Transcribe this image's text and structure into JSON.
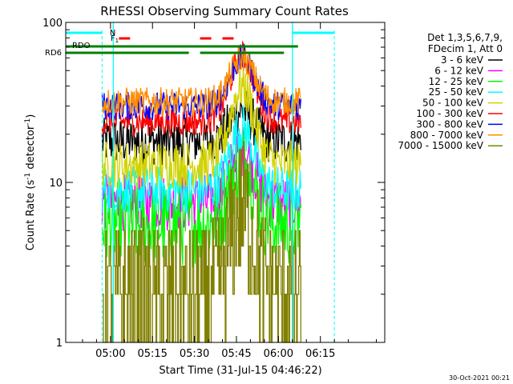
{
  "chart_data": {
    "type": "line",
    "title": "RHESSI Observing Summary Count Rates",
    "xlabel": "Start Time (31-Jul-15 04:46:22)",
    "ylabel_main": "Count Rate (s",
    "ylabel_sup1": "-1",
    "ylabel_mid": " detector",
    "ylabel_sup2": "-1",
    "ylabel_end": ")",
    "yscale": "log",
    "ylim": [
      1,
      100
    ],
    "xlim_minutes": [
      -16,
      98
    ],
    "x_ticks": [
      {
        "m": 0,
        "label": "05:00"
      },
      {
        "m": 15,
        "label": "05:15"
      },
      {
        "m": 30,
        "label": "05:30"
      },
      {
        "m": 45,
        "label": "05:45"
      },
      {
        "m": 60,
        "label": "06:00"
      },
      {
        "m": 75,
        "label": "06:15"
      }
    ],
    "y_ticks": [
      {
        "v": 1,
        "label": "1"
      },
      {
        "v": 10,
        "label": "10"
      },
      {
        "v": 100,
        "label": "100"
      }
    ],
    "legend": {
      "placement": "right",
      "header": [
        "Det 1,3,5,6,7,9,",
        "FDecim 1, Att 0"
      ]
    },
    "series": [
      {
        "name": "3 - 6 keV",
        "color": "#000000",
        "base": 18,
        "peak": 28,
        "noise": 0.05,
        "step": false
      },
      {
        "name": "6 - 12 keV",
        "color": "#ff00ff",
        "base": 7.5,
        "peak": 16,
        "noise": 0.06,
        "step": false
      },
      {
        "name": "12 - 25 keV",
        "color": "#00ff00",
        "base": 5.5,
        "peak": 14,
        "noise": 0.09,
        "step": false
      },
      {
        "name": "25 - 50 keV",
        "color": "#00ffff",
        "base": 9,
        "peak": 22,
        "noise": 0.05,
        "step": false
      },
      {
        "name": "50 - 100 keV",
        "color": "#d2d200",
        "base": 13,
        "peak": 40,
        "noise": 0.05,
        "step": false
      },
      {
        "name": "100 - 300 keV",
        "color": "#ff0000",
        "base": 24,
        "peak": 62,
        "noise": 0.03,
        "step": false
      },
      {
        "name": "300 - 800 keV",
        "color": "#0000ff",
        "base": 30,
        "peak": 60,
        "noise": 0.03,
        "step": false
      },
      {
        "name": "800 - 7000 keV",
        "color": "#ff8c00",
        "base": 32,
        "peak": 60,
        "noise": 0.03,
        "step": false
      },
      {
        "name": "7000 - 15000 keV",
        "color": "#808000",
        "base": 2,
        "peak": 7,
        "noise": 0.15,
        "step": true
      }
    ],
    "data_window_minutes": [
      -3,
      68
    ],
    "peak_minute": 47,
    "annotations": {
      "n_label": "N",
      "f_label": "F",
      "f_sub": "1",
      "rdo_label": "RDO",
      "rd6_label": "RD6",
      "n_bars": [
        [
          -16,
          -3
        ],
        [
          65,
          80
        ]
      ],
      "f_bars": [
        [
          3,
          7
        ],
        [
          32,
          36
        ],
        [
          40,
          44
        ]
      ],
      "n_dashed_minutes": [
        -3,
        80
      ],
      "saa_lines_minutes": [
        1,
        65
      ],
      "colors": {
        "n": "#00ffff",
        "f": "#ff0000",
        "rd": "#008000"
      }
    },
    "footer_date": "30-Oct-2021 00:21"
  }
}
